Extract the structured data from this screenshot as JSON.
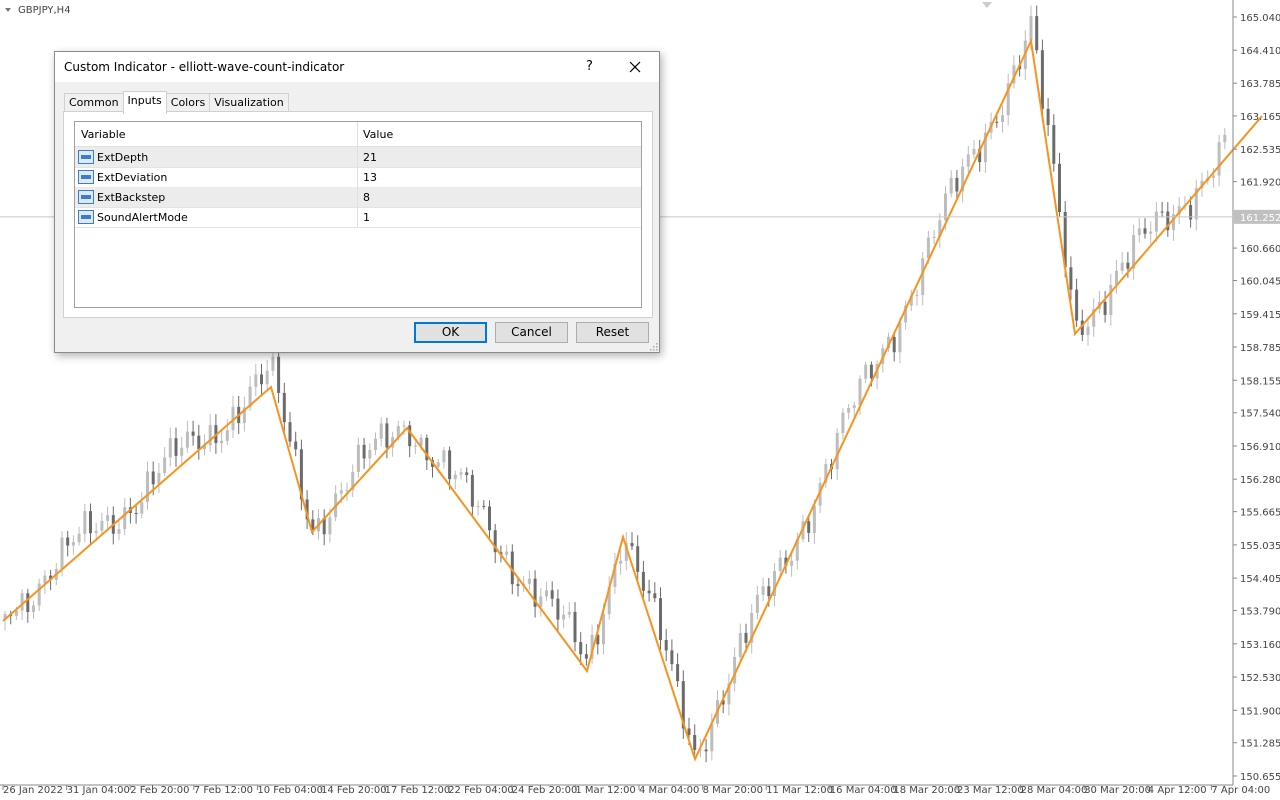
{
  "chart": {
    "symbol": "GBPJPY,H4",
    "price_scale": {
      "range": [
        150.484,
        165.362
      ],
      "ticks": [
        {
          "value": 165.04,
          "label": "165.040"
        },
        {
          "value": 164.41,
          "label": "164.410"
        },
        {
          "value": 163.785,
          "label": "163.785"
        },
        {
          "value": 163.165,
          "label": "163.165"
        },
        {
          "value": 162.535,
          "label": "162.535"
        },
        {
          "value": 161.92,
          "label": "161.920"
        },
        {
          "value": 160.66,
          "label": "160.660"
        },
        {
          "value": 160.045,
          "label": "160.045"
        },
        {
          "value": 159.415,
          "label": "159.415"
        },
        {
          "value": 158.785,
          "label": "158.785"
        },
        {
          "value": 158.155,
          "label": "158.155"
        },
        {
          "value": 157.54,
          "label": "157.540"
        },
        {
          "value": 156.91,
          "label": "156.910"
        },
        {
          "value": 156.28,
          "label": "156.280"
        },
        {
          "value": 155.665,
          "label": "155.665"
        },
        {
          "value": 155.035,
          "label": "155.035"
        },
        {
          "value": 154.405,
          "label": "154.405"
        },
        {
          "value": 153.79,
          "label": "153.790"
        },
        {
          "value": 153.16,
          "label": "153.160"
        },
        {
          "value": 152.53,
          "label": "152.530"
        },
        {
          "value": 151.9,
          "label": "151.900"
        },
        {
          "value": 151.285,
          "label": "151.285"
        },
        {
          "value": 150.655,
          "label": "150.655"
        }
      ],
      "current": {
        "value": 161.252,
        "label": "161.252"
      }
    },
    "time_labels": [
      "26 Jan 2022",
      "31 Jan 04:00",
      "2 Feb 20:00",
      "7 Feb 12:00",
      "10 Feb 04:00",
      "14 Feb 20:00",
      "17 Feb 12:00",
      "22 Feb 04:00",
      "24 Feb 20:00",
      "1 Mar 12:00",
      "4 Mar 04:00",
      "8 Mar 20:00",
      "11 Mar 12:00",
      "16 Mar 04:00",
      "18 Mar 20:00",
      "23 Mar 12:00",
      "28 Mar 04:00",
      "30 Mar 20:00",
      "4 Apr 12:00",
      "7 Apr 04:00"
    ]
  },
  "dialog": {
    "title": "Custom Indicator - elliott-wave-count-indicator",
    "help": "?",
    "tabs": [
      "Common",
      "Inputs",
      "Colors",
      "Visualization"
    ],
    "table": {
      "headers": [
        "Variable",
        "Value"
      ],
      "rows": [
        [
          "ExtDepth",
          21
        ],
        [
          "ExtDeviation",
          13
        ],
        [
          "ExtBackstep",
          8
        ],
        [
          "SoundAlertMode",
          1
        ]
      ]
    },
    "buttons": [
      "OK",
      "Cancel",
      "Reset"
    ]
  }
}
